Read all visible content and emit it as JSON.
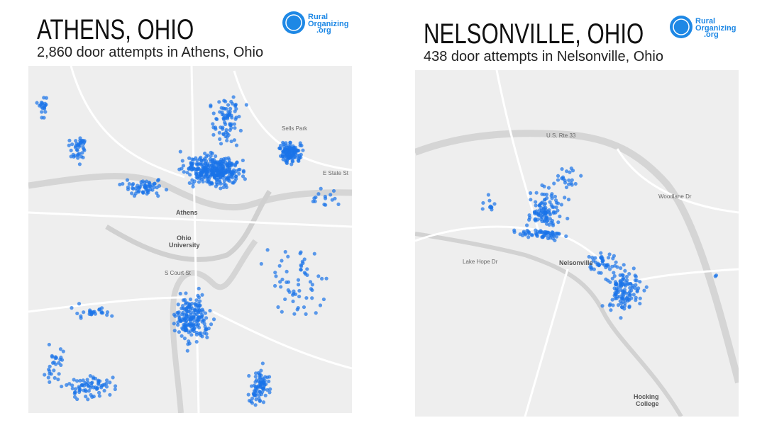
{
  "panels": [
    {
      "title": "ATHENS, OHIO",
      "subtitle": "2,860 door attempts in Athens, Ohio",
      "logo": {
        "line1": "Rural",
        "line2": "Organizing",
        "line3": ".org"
      },
      "map_labels": [
        "Athens",
        "Ohio",
        "University",
        "Sells Park",
        "E State St",
        "S Court St"
      ]
    },
    {
      "title": "NELSONVILLE, OHIO",
      "subtitle": "438 door attempts in Nelsonville, Ohio",
      "logo": {
        "line1": "Rural",
        "line2": "Organizing",
        "line3": ".org"
      },
      "map_labels": [
        "Nelsonville",
        "Hocking",
        "College",
        "U.S. Rte 33",
        "Lake Hope Dr",
        "Woodlane Dr"
      ]
    }
  ]
}
